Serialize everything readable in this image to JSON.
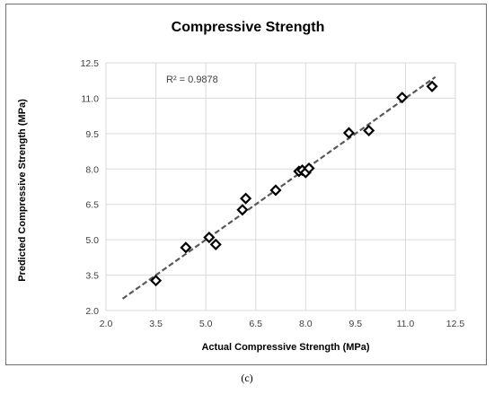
{
  "chart_data": {
    "type": "scatter",
    "title": "Compressive Strength",
    "xlabel": "Actual Compressive Strength (MPa)",
    "ylabel": "Predicted Compressive Strength (MPa)",
    "xlim": [
      2.0,
      12.5
    ],
    "ylim": [
      2.0,
      12.5
    ],
    "xticks": [
      "2.0",
      "3.5",
      "5.0",
      "6.5",
      "8.0",
      "9.5",
      "11.0",
      "12.5"
    ],
    "yticks": [
      "2.0",
      "3.5",
      "5.0",
      "6.5",
      "8.0",
      "9.5",
      "11.0",
      "12.5"
    ],
    "grid": true,
    "legend": "none",
    "annotation": "R² = 0.9878",
    "marker": "diamond",
    "trendline": {
      "style": "dashed",
      "x": [
        2.5,
        11.9
      ],
      "y": [
        2.5,
        11.9
      ]
    },
    "points": [
      {
        "x": 3.5,
        "y": 3.27
      },
      {
        "x": 4.4,
        "y": 4.67
      },
      {
        "x": 5.1,
        "y": 5.1
      },
      {
        "x": 5.3,
        "y": 4.8
      },
      {
        "x": 6.1,
        "y": 6.27
      },
      {
        "x": 6.2,
        "y": 6.75
      },
      {
        "x": 7.1,
        "y": 7.1
      },
      {
        "x": 7.8,
        "y": 7.9
      },
      {
        "x": 7.9,
        "y": 7.95
      },
      {
        "x": 8.0,
        "y": 7.85
      },
      {
        "x": 8.1,
        "y": 8.03
      },
      {
        "x": 9.3,
        "y": 9.53
      },
      {
        "x": 9.9,
        "y": 9.63
      },
      {
        "x": 10.9,
        "y": 11.03
      },
      {
        "x": 11.8,
        "y": 11.5
      }
    ],
    "colors": {
      "marker": "#000000",
      "trendline": "#595959",
      "grid": "#d9d9d9"
    }
  },
  "caption": "(c)"
}
